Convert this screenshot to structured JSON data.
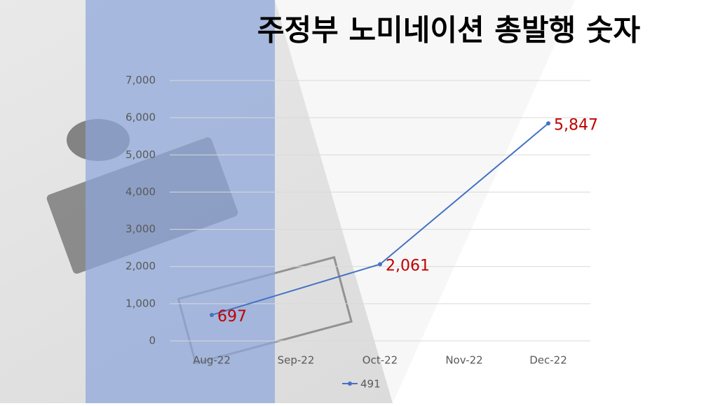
{
  "chart_data": {
    "type": "line",
    "title": "주정부 노미네이션 총발행 숫자",
    "categories": [
      "Aug-22",
      "Sep-22",
      "Oct-22",
      "Nov-22",
      "Dec-22"
    ],
    "series": [
      {
        "name": "491",
        "color": "#4472c4",
        "x": [
          "Aug-22",
          "Oct-22",
          "Dec-22"
        ],
        "values": [
          697,
          2061,
          5847
        ],
        "value_labels": [
          "697",
          "2,061",
          "5,847"
        ]
      }
    ],
    "ylim": [
      0,
      7000
    ],
    "yticks": [
      0,
      {
        "value": 1000,
        "label": "1,000"
      },
      {
        "value": 2000,
        "label": "2,000"
      },
      {
        "value": 3000,
        "label": "3,000"
      },
      {
        "value": 4000,
        "label": "4,000"
      },
      {
        "value": 5000,
        "label": "5,000"
      },
      {
        "value": 6000,
        "label": "6,000"
      },
      {
        "value": 7000,
        "label": "7,000"
      }
    ],
    "grid": true,
    "label_color": "#c00000",
    "legend": "bottom"
  }
}
